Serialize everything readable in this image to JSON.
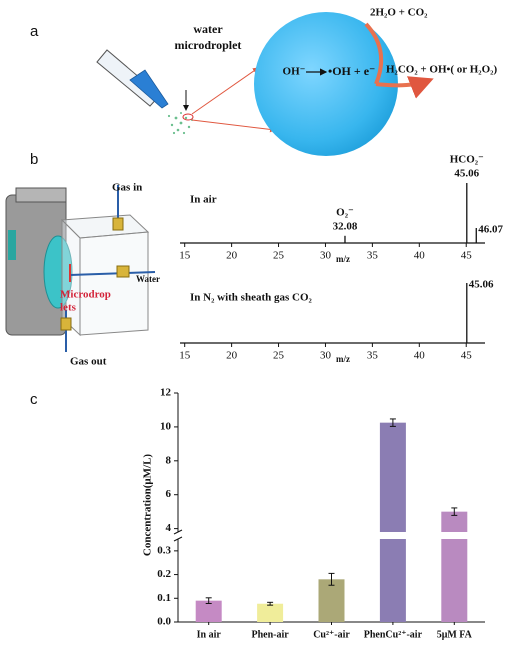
{
  "panel_labels": [
    "a",
    "b",
    "c"
  ],
  "diagram": {
    "droplet_label": [
      "water",
      "microdroplet"
    ],
    "reactant": "OH⁻",
    "product": "•OH + e⁻",
    "top_products": "2H₂O + CO₂",
    "right_products": "H₂CO₂ + OH•( or H₂O₂)"
  },
  "apparatus": {
    "gas_in": "Gas in",
    "water": "Water",
    "microdroplets": [
      "Microdrop",
      "lets"
    ],
    "gas_out": "Gas out"
  },
  "chart_data": [
    {
      "type": "spectrum",
      "title": "In air",
      "xlabel": "m/z",
      "x": [
        32.08,
        45.06,
        46.07
      ],
      "values": [
        12,
        100,
        25
      ],
      "ion_labels": [
        "O₂⁻",
        "HCO₂⁻",
        null
      ],
      "xlim": [
        14.5,
        47
      ],
      "xticks": [
        15,
        20,
        25,
        30,
        35,
        40,
        45
      ],
      "ylim": [
        0,
        100
      ],
      "color": "#111111"
    },
    {
      "type": "spectrum",
      "title": "In N₂ with sheath gas CO₂",
      "xlabel": "m/z",
      "x": [
        45.06
      ],
      "values": [
        100
      ],
      "ion_labels": [
        null
      ],
      "xlim": [
        14.5,
        47
      ],
      "xticks": [
        15,
        20,
        25,
        30,
        35,
        40,
        45
      ],
      "ylim": [
        0,
        100
      ],
      "color": "#111111"
    },
    {
      "type": "bar",
      "ylabel": "Concentration(μM/L)",
      "categories": [
        "In air",
        "Phen-air",
        "Cu²⁺-air",
        "PhenCu²⁺-air",
        "5μM FA"
      ],
      "values": [
        0.09,
        0.077,
        0.18,
        10.25,
        5.0
      ],
      "errors": [
        0.012,
        0.006,
        0.025,
        0.22,
        0.22
      ],
      "colors": [
        "#c58ac4",
        "#f0ed9a",
        "#aba877",
        "#8b7db3",
        "#b98ac0"
      ],
      "broken_axis": {
        "lower": {
          "ylim": [
            0,
            0.35
          ],
          "yticks": [
            {
              "value": 0,
              "label": "0.0"
            },
            0.1,
            0.2,
            0.3
          ]
        },
        "upper": {
          "ylim": [
            3.8,
            12
          ],
          "yticks": [
            4,
            6,
            8,
            10,
            12
          ]
        }
      }
    }
  ]
}
